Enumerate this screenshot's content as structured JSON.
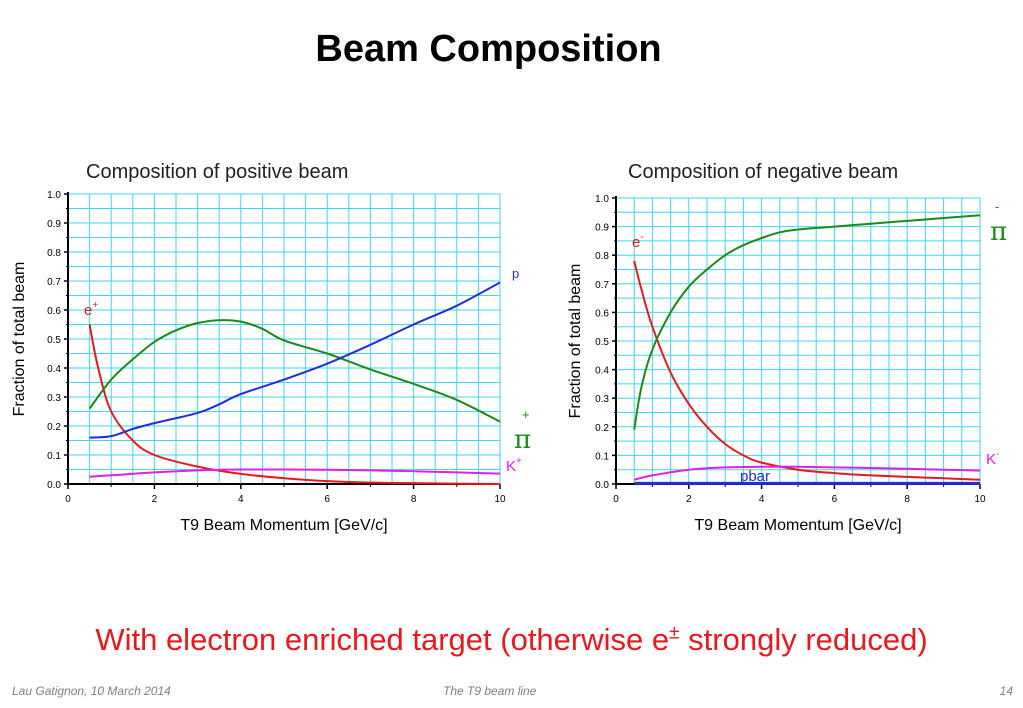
{
  "slide": {
    "title": "Beam Composition",
    "note_prefix": "With electron enriched target (otherwise e",
    "note_superscript": "±",
    "note_suffix": " strongly reduced)",
    "footer_left": "Lau Gatignon, 10 March 2014",
    "footer_center": "The T9 beam line",
    "page_number": "14"
  },
  "chart_data": [
    {
      "type": "line",
      "title": "Composition of positive beam",
      "xlabel": "T9 Beam Momentum [GeV/c]",
      "ylabel": "Fraction of total beam",
      "xlim": [
        0,
        10
      ],
      "ylim": [
        0,
        1.0
      ],
      "xticks": [
        "0",
        "2",
        "4",
        "6",
        "8",
        "10"
      ],
      "yticks": [
        "0.0",
        "0.1",
        "0.2",
        "0.3",
        "0.4",
        "0.5",
        "0.6",
        "0.7",
        "0.8",
        "0.9",
        "1.0"
      ],
      "grid": true,
      "series": [
        {
          "name": "e+",
          "color": "#e8191e",
          "x": [
            0.5,
            0.7,
            1.0,
            1.5,
            2.0,
            3.0,
            4.0,
            5.0,
            6.0,
            7.0,
            8.0,
            10.0
          ],
          "y": [
            0.55,
            0.4,
            0.25,
            0.15,
            0.1,
            0.06,
            0.035,
            0.02,
            0.01,
            0.005,
            0.003,
            0.0
          ]
        },
        {
          "name": "π+",
          "color": "#1a8a1a",
          "x": [
            0.5,
            1.0,
            1.5,
            2.0,
            2.5,
            3.0,
            3.5,
            4.0,
            4.5,
            5.0,
            6.0,
            7.0,
            8.0,
            9.0,
            10.0
          ],
          "y": [
            0.26,
            0.36,
            0.43,
            0.49,
            0.53,
            0.555,
            0.565,
            0.56,
            0.535,
            0.495,
            0.45,
            0.395,
            0.345,
            0.29,
            0.215
          ]
        },
        {
          "name": "p",
          "color": "#1f2fd6",
          "x": [
            0.5,
            1.0,
            1.5,
            2.0,
            3.0,
            3.5,
            4.0,
            5.0,
            6.0,
            7.0,
            8.0,
            9.0,
            10.0
          ],
          "y": [
            0.16,
            0.165,
            0.19,
            0.21,
            0.245,
            0.275,
            0.31,
            0.36,
            0.415,
            0.48,
            0.55,
            0.615,
            0.695
          ]
        },
        {
          "name": "K+",
          "color": "#e020e8",
          "x": [
            0.5,
            1.0,
            2.0,
            3.0,
            4.0,
            5.0,
            6.0,
            7.0,
            8.0,
            9.0,
            10.0
          ],
          "y": [
            0.025,
            0.03,
            0.04,
            0.047,
            0.05,
            0.05,
            0.049,
            0.047,
            0.044,
            0.04,
            0.036
          ]
        }
      ],
      "labels": [
        {
          "text": "e",
          "sup": "+",
          "series": "e+"
        },
        {
          "text": "p",
          "sup": "",
          "series": "p"
        },
        {
          "text": "π",
          "sup": "+",
          "series": "π+"
        },
        {
          "text": "K",
          "sup": "+",
          "series": "K+"
        }
      ]
    },
    {
      "type": "line",
      "title": "Composition of negative beam",
      "xlabel": "T9 Beam Momentum [GeV/c]",
      "ylabel": "Fraction of total beam",
      "xlim": [
        0,
        10
      ],
      "ylim": [
        0,
        1.0
      ],
      "xticks": [
        "0",
        "2",
        "4",
        "6",
        "8",
        "10"
      ],
      "yticks": [
        "0.0",
        "0.1",
        "0.2",
        "0.3",
        "0.4",
        "0.5",
        "0.6",
        "0.7",
        "0.8",
        "0.9",
        "1.0"
      ],
      "grid": true,
      "series": [
        {
          "name": "e-",
          "color": "#e8191e",
          "x": [
            0.5,
            0.7,
            1.0,
            1.5,
            2.0,
            2.5,
            3.0,
            3.5,
            4.0,
            5.0,
            6.0,
            7.0,
            8.0,
            9.0,
            10.0
          ],
          "y": [
            0.78,
            0.68,
            0.55,
            0.39,
            0.28,
            0.2,
            0.14,
            0.1,
            0.075,
            0.05,
            0.038,
            0.03,
            0.025,
            0.02,
            0.015
          ]
        },
        {
          "name": "π-",
          "color": "#1a8a1a",
          "x": [
            0.5,
            0.7,
            1.0,
            1.5,
            2.0,
            2.5,
            3.0,
            3.5,
            4.0,
            4.5,
            5.0,
            6.0,
            7.0,
            8.0,
            9.0,
            10.0
          ],
          "y": [
            0.19,
            0.34,
            0.47,
            0.6,
            0.69,
            0.75,
            0.8,
            0.835,
            0.86,
            0.88,
            0.89,
            0.9,
            0.91,
            0.92,
            0.93,
            0.94
          ]
        },
        {
          "name": "K-",
          "color": "#e020e8",
          "x": [
            0.5,
            1.0,
            2.0,
            3.0,
            4.0,
            5.0,
            6.0,
            7.0,
            8.0,
            9.0,
            10.0
          ],
          "y": [
            0.015,
            0.03,
            0.05,
            0.058,
            0.06,
            0.06,
            0.058,
            0.056,
            0.053,
            0.05,
            0.047
          ]
        },
        {
          "name": "pbar",
          "color": "#1f2fd6",
          "x": [
            0.5,
            2.0,
            4.0,
            6.0,
            8.0,
            10.0
          ],
          "y": [
            0.002,
            0.002,
            0.002,
            0.002,
            0.002,
            0.002
          ]
        }
      ],
      "labels": [
        {
          "text": "e",
          "sup": "-",
          "series": "e-"
        },
        {
          "text": "π",
          "sup": "-",
          "series": "π-"
        },
        {
          "text": "K",
          "sup": "-",
          "series": "K-"
        },
        {
          "text": "pbar",
          "sup": "",
          "series": "pbar"
        }
      ]
    }
  ]
}
